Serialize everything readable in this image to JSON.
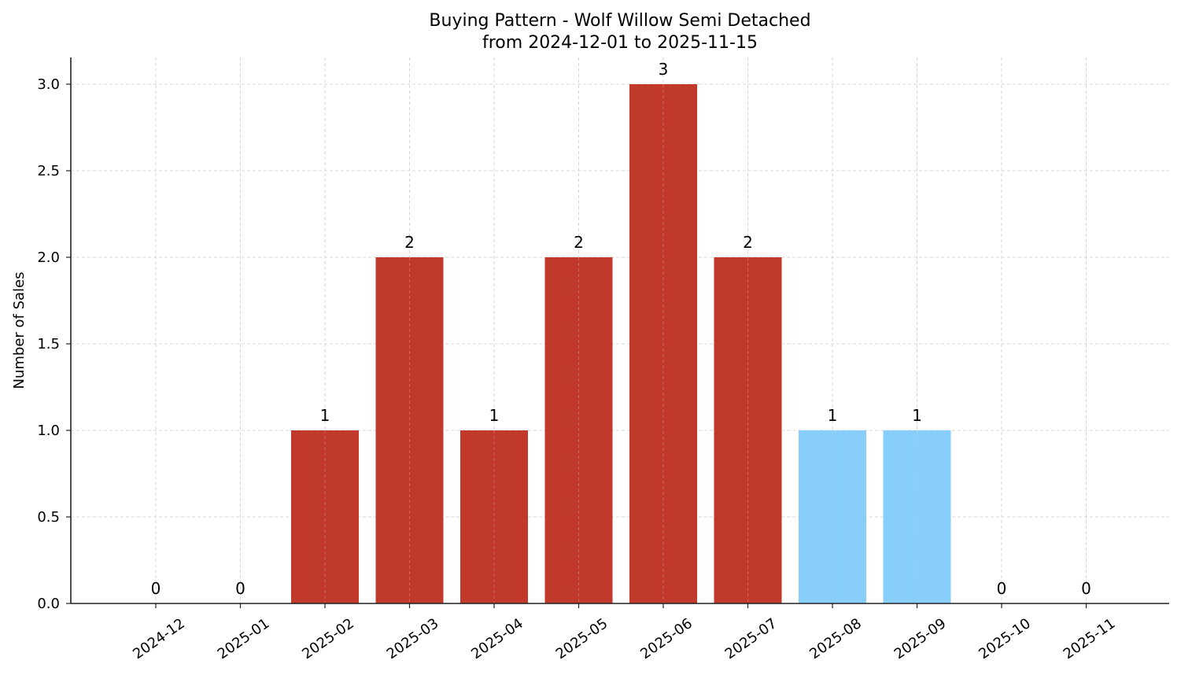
{
  "chart_data": {
    "type": "bar",
    "title": "Buying Pattern - Wolf Willow Semi Detached",
    "subtitle": "from 2024-12-01 to 2025-11-15",
    "xlabel": "",
    "ylabel": "Number of Sales",
    "ylim": [
      0,
      3.15
    ],
    "yticks": [
      "0.0",
      "0.5",
      "1.0",
      "1.5",
      "2.0",
      "2.5",
      "3.0"
    ],
    "grid": true,
    "categories": [
      "2024-12",
      "2025-01",
      "2025-02",
      "2025-03",
      "2025-04",
      "2025-05",
      "2025-06",
      "2025-07",
      "2025-08",
      "2025-09",
      "2025-10",
      "2025-11"
    ],
    "values": [
      0,
      0,
      1,
      2,
      1,
      2,
      3,
      2,
      1,
      1,
      0,
      0
    ],
    "bar_colors": [
      "#c0392b",
      "#c0392b",
      "#c0392b",
      "#c0392b",
      "#c0392b",
      "#c0392b",
      "#c0392b",
      "#c0392b",
      "#87cefa",
      "#87cefa",
      "#c0392b",
      "#c0392b"
    ],
    "data_labels": [
      "0",
      "0",
      "1",
      "2",
      "1",
      "2",
      "3",
      "2",
      "1",
      "1",
      "0",
      "0"
    ]
  }
}
